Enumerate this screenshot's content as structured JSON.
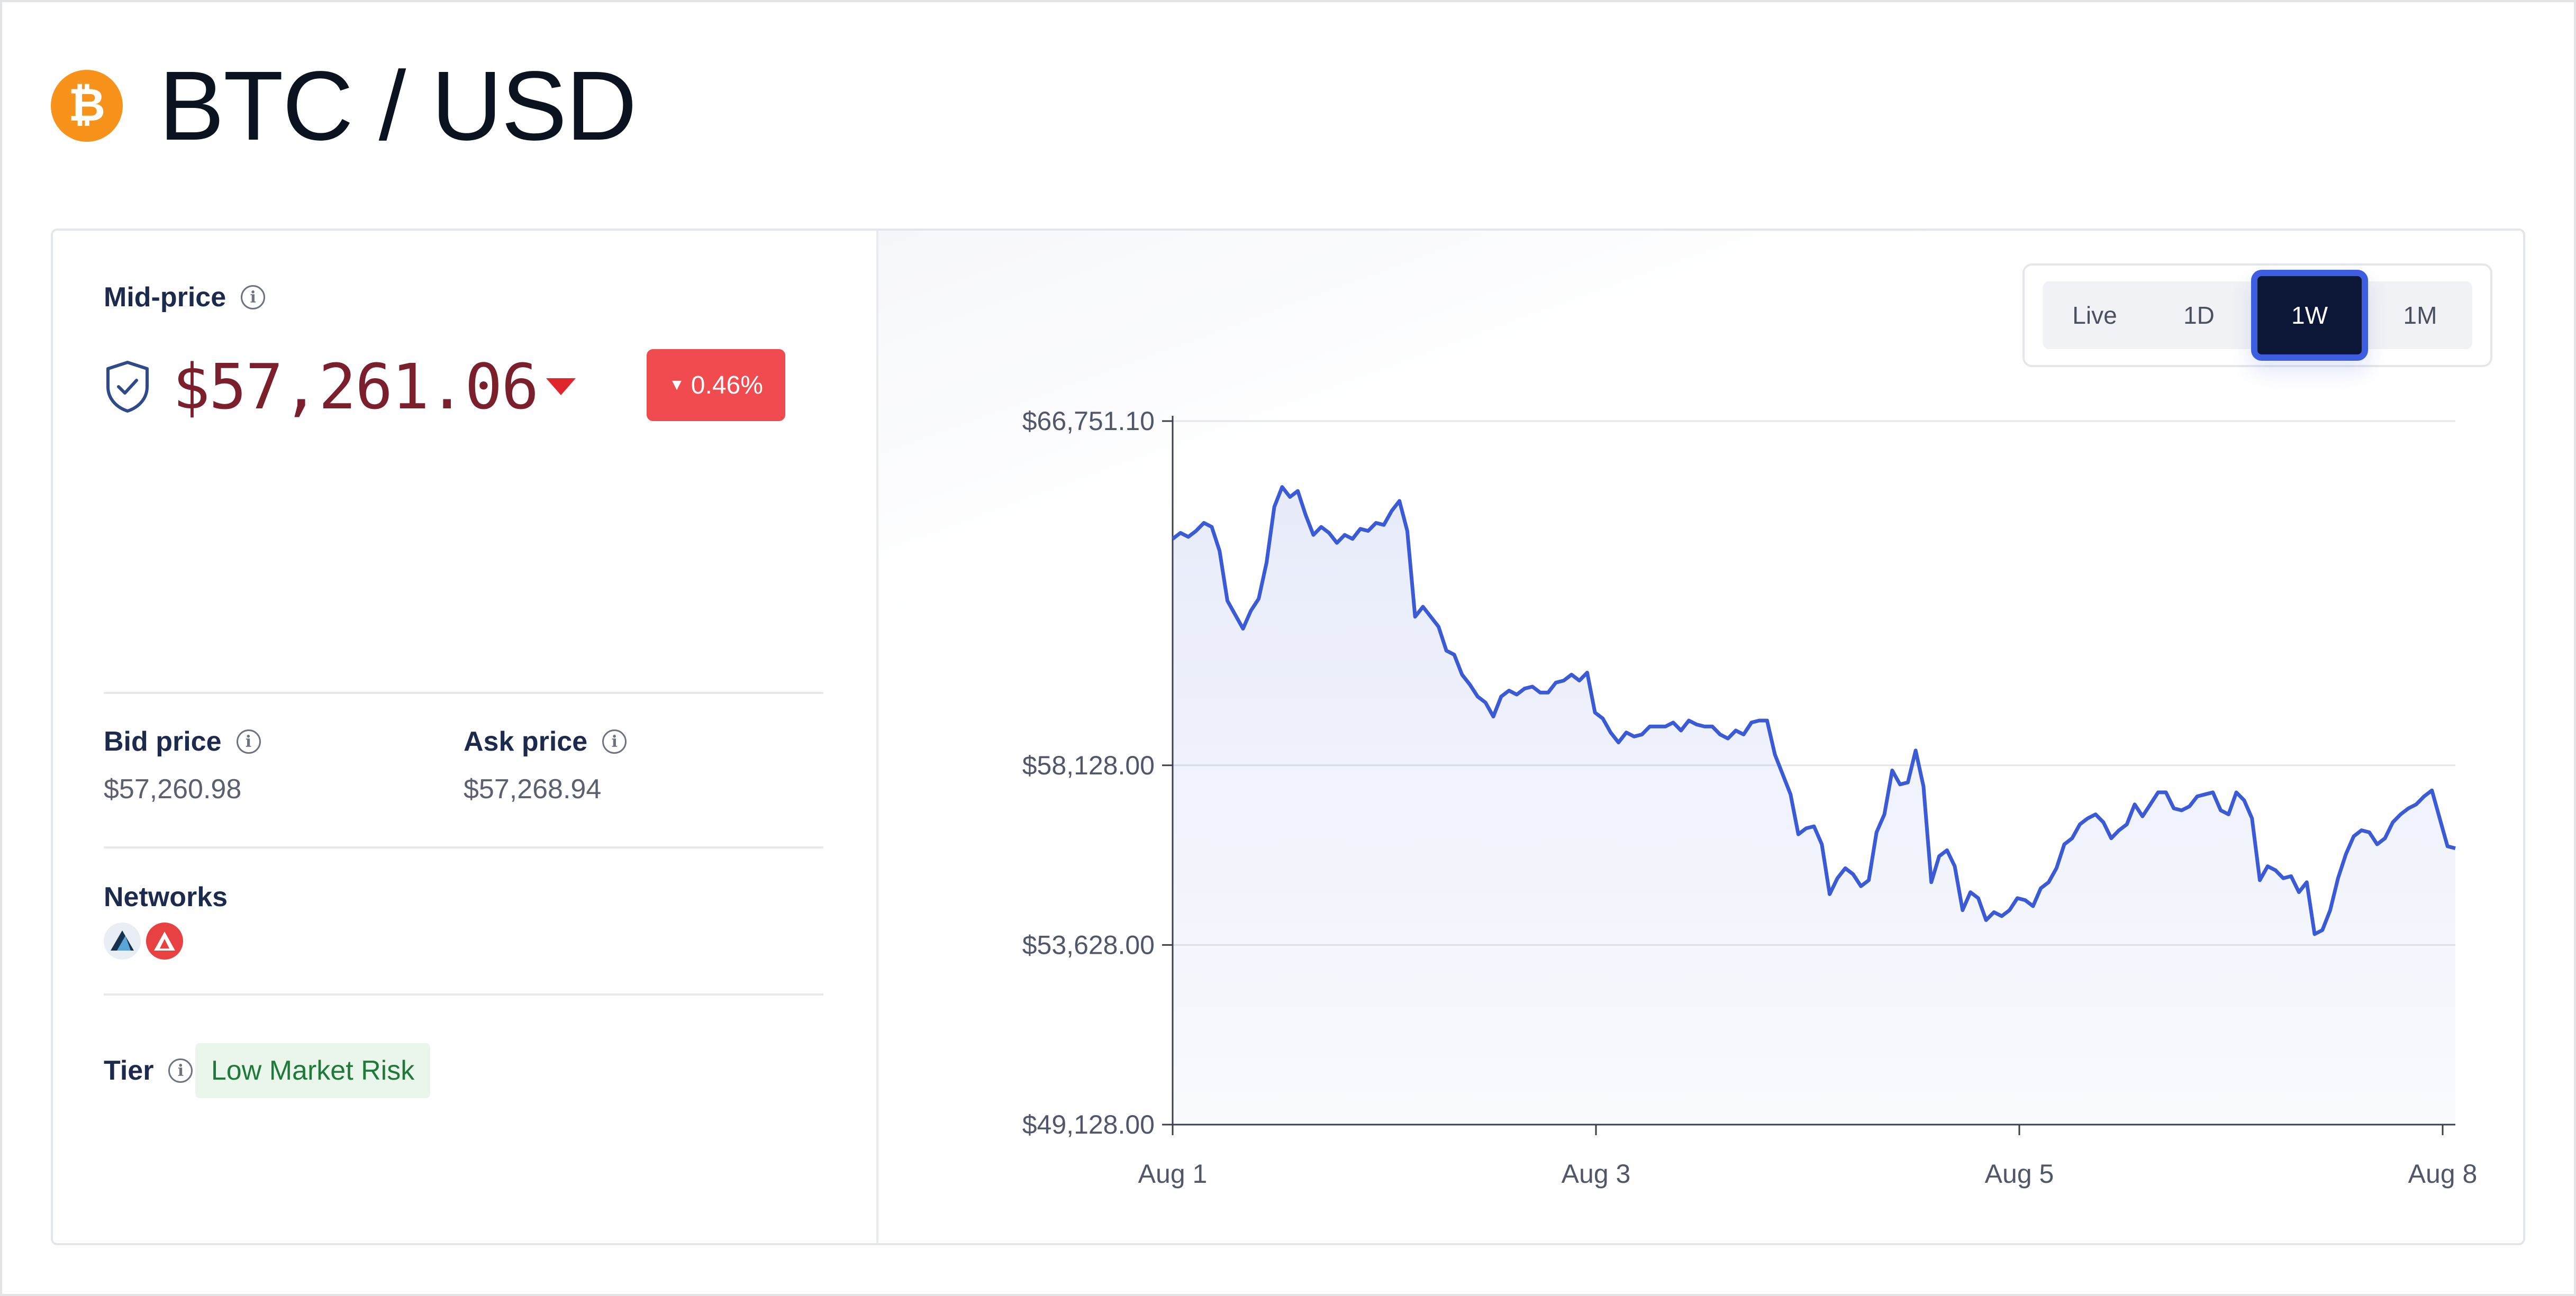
{
  "header": {
    "title": "BTC / USD",
    "logo_icon": "bitcoin-icon"
  },
  "left": {
    "mid_price_label": "Mid-price",
    "mid_price": "$57,261.06",
    "change": "0.46%",
    "change_direction": "down",
    "bid_label": "Bid price",
    "bid_value": "$57,260.98",
    "ask_label": "Ask price",
    "ask_value": "$57,268.94",
    "networks_label": "Networks",
    "networks": [
      "network-1-icon",
      "avalanche-icon"
    ],
    "tier_label": "Tier",
    "tier_value": "Low Market Risk"
  },
  "range_tabs": {
    "items": [
      "Live",
      "1D",
      "1W",
      "1M"
    ],
    "active": "1W"
  },
  "colors": {
    "accent": "#3d5ee0",
    "line": "#3b5bd6",
    "down": "#f04b4f",
    "price": "#7a1f2b",
    "bitcoin": "#f7931a"
  },
  "chart_data": {
    "type": "area",
    "y_ticks": [
      "$66,751.10",
      "$58,128.00",
      "$53,628.00",
      "$49,128.00"
    ],
    "y_tick_values": [
      66751.1,
      58128.0,
      53628.0,
      49128.0
    ],
    "x_ticks": [
      "Aug 1",
      "Aug 3",
      "Aug 5",
      "Aug 8"
    ],
    "ylim": [
      49128.0,
      66751.1
    ],
    "grid": true,
    "series": [
      {
        "values": [
          63800,
          63950,
          63850,
          64000,
          64200,
          64100,
          63500,
          62250,
          61900,
          61550,
          62000,
          62300,
          63200,
          64600,
          65100,
          64850,
          65000,
          64400,
          63900,
          64100,
          63950,
          63700,
          63900,
          63800,
          64050,
          64000,
          64200,
          64150,
          64500,
          64750,
          64000,
          61850,
          62100,
          61850,
          61600,
          61000,
          60900,
          60400,
          60150,
          59850,
          59700,
          59350,
          59850,
          60000,
          59900,
          60050,
          60100,
          59950,
          59950,
          60200,
          60250,
          60400,
          60250,
          60450,
          59450,
          59300,
          58950,
          58700,
          58950,
          58850,
          58900,
          59100,
          59100,
          59100,
          59200,
          59000,
          59250,
          59150,
          59100,
          59100,
          58900,
          58800,
          59000,
          58900,
          59200,
          59250,
          59250,
          58400,
          57900,
          57400,
          56400,
          56550,
          56600,
          56150,
          54900,
          55300,
          55550,
          55400,
          55100,
          55250,
          56450,
          56900,
          58000,
          57650,
          57700,
          58500,
          57600,
          55200,
          55850,
          56000,
          55600,
          54500,
          54950,
          54800,
          54250,
          54450,
          54350,
          54500,
          54800,
          54750,
          54600,
          55050,
          55200,
          55550,
          56150,
          56300,
          56650,
          56800,
          56900,
          56700,
          56300,
          56500,
          56650,
          57150,
          56850,
          57150,
          57450,
          57450,
          57050,
          57000,
          57100,
          57350,
          57400,
          57450,
          57000,
          56900,
          57450,
          57250,
          56800,
          55250,
          55600,
          55500,
          55300,
          55350,
          54950,
          55200,
          53900,
          54000,
          54500,
          55300,
          55900,
          56350,
          56500,
          56450,
          56150,
          56300,
          56700,
          56900,
          57050,
          57150,
          57350,
          57500,
          56800,
          56100,
          56050
        ]
      }
    ]
  }
}
